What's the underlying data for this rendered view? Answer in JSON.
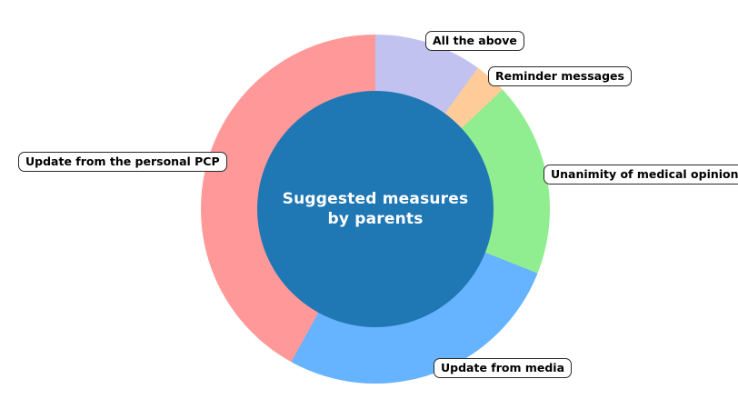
{
  "chart_data": {
    "type": "pie",
    "subtype": "donut",
    "title": "Suggested measures by parents",
    "title_display": "Suggested measures\nby parents",
    "start_angle": "top, clockwise",
    "legend_position": "outside-callouts",
    "center_color": "#1f77b4",
    "pct_text_color": "#ffffff",
    "background_color": "#ffffff",
    "slices": [
      {
        "label": "All the above",
        "value": 10,
        "pct_label": "10%",
        "color": "#c2c2f0"
      },
      {
        "label": "Reminder messages",
        "value": 3,
        "pct_label": "3%",
        "color": "#ffcc99"
      },
      {
        "label": "Unanimity of medical opinion",
        "value": 18,
        "pct_label": "18%",
        "color": "#90ee90"
      },
      {
        "label": "Update from media",
        "value": 27,
        "pct_label": "27%",
        "color": "#66b3ff"
      },
      {
        "label": "Update from the personal PCP",
        "value": 42,
        "pct_label": "42%",
        "color": "#ff9999"
      }
    ]
  }
}
